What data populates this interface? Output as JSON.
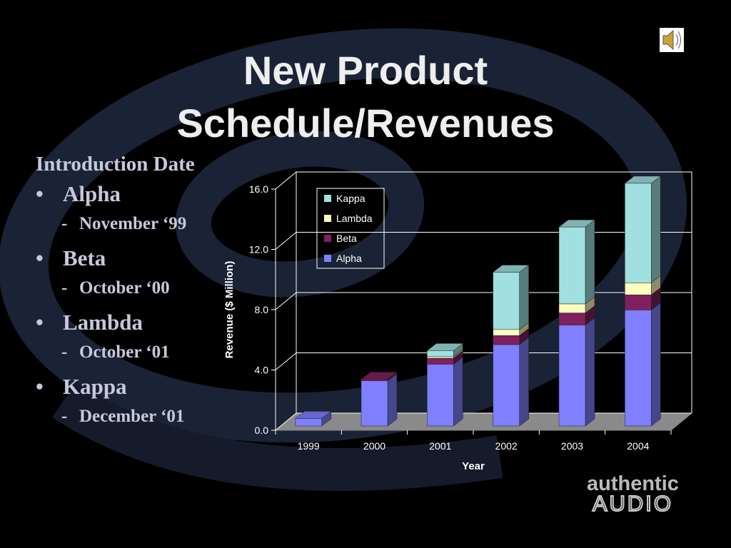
{
  "slide_title": "New Product Schedule/Revenues",
  "intro": {
    "heading": "Introduction Date",
    "items": [
      {
        "name": "Alpha",
        "date": "November ‘99"
      },
      {
        "name": "Beta",
        "date": "October ‘00"
      },
      {
        "name": "Lambda",
        "date": "October ‘01"
      },
      {
        "name": "Kappa",
        "date": "December ‘01"
      }
    ]
  },
  "logo": [
    "authentic",
    "AUDIO"
  ],
  "chart_data": {
    "type": "stacked_bar_3d",
    "x_label": "Year",
    "y_label": "Revenue ($ Million)",
    "categories": [
      "1999",
      "2000",
      "2001",
      "2002",
      "2003",
      "2004"
    ],
    "series": [
      {
        "name": "Alpha",
        "color": "#7f7fff",
        "values": [
          0.5,
          3.0,
          4.1,
          5.4,
          6.7,
          7.7
        ]
      },
      {
        "name": "Beta",
        "color": "#80205f",
        "values": [
          0,
          0.1,
          0.4,
          0.6,
          0.8,
          1.0
        ]
      },
      {
        "name": "Lambda",
        "color": "#ffffc0",
        "values": [
          0,
          0,
          0.1,
          0.4,
          0.6,
          0.8
        ]
      },
      {
        "name": "Kappa",
        "color": "#a0e0e0",
        "values": [
          0,
          0,
          0.4,
          3.8,
          5.1,
          6.6
        ]
      }
    ],
    "ylim": [
      0,
      16
    ],
    "yticks": [
      {
        "value": 0,
        "label": "0.0"
      },
      {
        "value": 4,
        "label": "4.0"
      },
      {
        "value": 8,
        "label": "8.0"
      },
      {
        "value": 12,
        "label": "12.0"
      },
      {
        "value": 16,
        "label": "16.0"
      }
    ],
    "grid": true
  }
}
